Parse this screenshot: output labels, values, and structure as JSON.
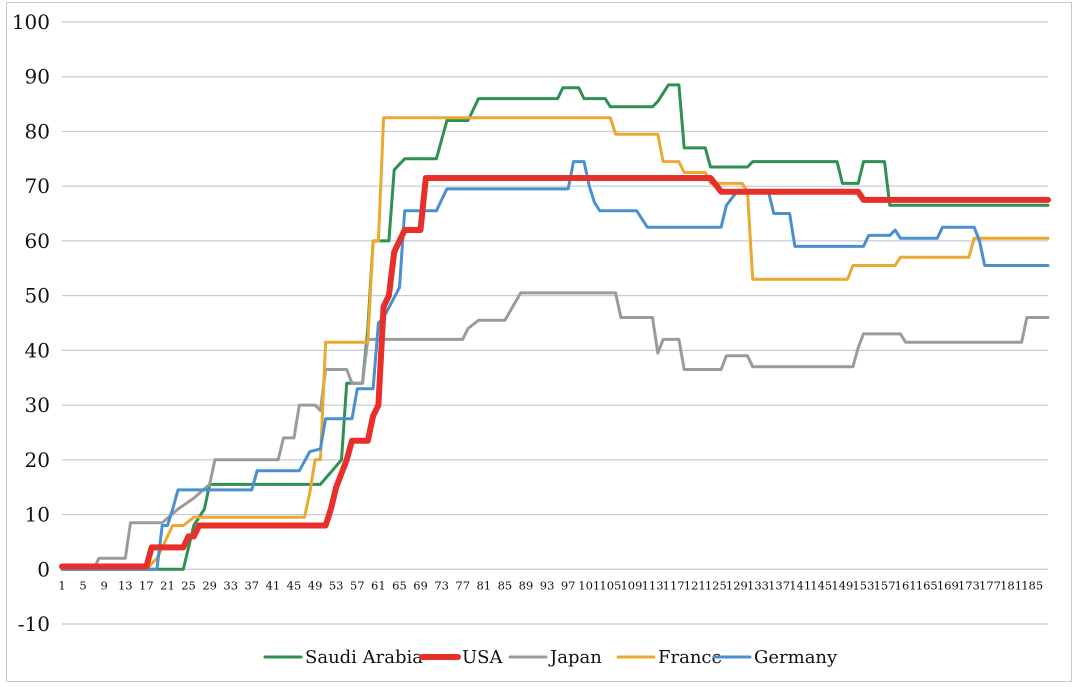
{
  "chart_data": {
    "type": "line",
    "title": "",
    "xlabel": "",
    "ylabel": "",
    "xlim": [
      1,
      188
    ],
    "ylim": [
      -10,
      100
    ],
    "yticks": [
      -10,
      0,
      10,
      20,
      30,
      40,
      50,
      60,
      70,
      80,
      90,
      100
    ],
    "xticks": [
      1,
      5,
      9,
      13,
      17,
      21,
      25,
      29,
      33,
      37,
      41,
      45,
      49,
      53,
      57,
      61,
      65,
      69,
      73,
      77,
      81,
      85,
      89,
      93,
      97,
      101,
      105,
      109,
      113,
      117,
      121,
      125,
      129,
      133,
      137,
      141,
      145,
      149,
      153,
      157,
      161,
      165,
      169,
      173,
      177,
      181,
      185
    ],
    "grid": "horizontal",
    "legend_position": "bottom",
    "series": [
      {
        "name": "Saudi Arabia",
        "color": "#2e9150",
        "width": 3,
        "points": [
          [
            1,
            0
          ],
          [
            24,
            0
          ],
          [
            26,
            8
          ],
          [
            28,
            11
          ],
          [
            29,
            15.5
          ],
          [
            45,
            15.5
          ],
          [
            50,
            15.5
          ],
          [
            54,
            20
          ],
          [
            55,
            34
          ],
          [
            58,
            34
          ],
          [
            59,
            44
          ],
          [
            60,
            60
          ],
          [
            63,
            60
          ],
          [
            64,
            73
          ],
          [
            66,
            75
          ],
          [
            72,
            75
          ],
          [
            74,
            82
          ],
          [
            78,
            82
          ],
          [
            80,
            86
          ],
          [
            95,
            86
          ],
          [
            96,
            88
          ],
          [
            99,
            88
          ],
          [
            100,
            86
          ],
          [
            104,
            86
          ],
          [
            105,
            84.5
          ],
          [
            113,
            84.5
          ],
          [
            114,
            85.5
          ],
          [
            116,
            88.5
          ],
          [
            118,
            88.5
          ],
          [
            119,
            77
          ],
          [
            123,
            77
          ],
          [
            124,
            73.5
          ],
          [
            131,
            73.5
          ],
          [
            132,
            74.5
          ],
          [
            148,
            74.5
          ],
          [
            149,
            70.5
          ],
          [
            152,
            70.5
          ],
          [
            153,
            74.5
          ],
          [
            157,
            74.5
          ],
          [
            158,
            66.5
          ],
          [
            188,
            66.5
          ]
        ]
      },
      {
        "name": "USA",
        "color": "#e8302a",
        "width": 6,
        "points": [
          [
            1,
            0.5
          ],
          [
            17,
            0.5
          ],
          [
            18,
            4
          ],
          [
            24,
            4
          ],
          [
            25,
            6
          ],
          [
            26,
            6
          ],
          [
            27,
            8
          ],
          [
            51,
            8
          ],
          [
            52,
            11
          ],
          [
            53,
            15
          ],
          [
            55,
            20
          ],
          [
            56,
            23.5
          ],
          [
            59,
            23.5
          ],
          [
            60,
            28
          ],
          [
            61,
            30
          ],
          [
            62,
            48
          ],
          [
            63,
            50
          ],
          [
            64,
            58
          ],
          [
            66,
            62
          ],
          [
            69,
            62
          ],
          [
            70,
            71.5
          ],
          [
            124,
            71.5
          ],
          [
            126,
            69
          ],
          [
            152,
            69
          ],
          [
            153,
            67.5
          ],
          [
            188,
            67.5
          ]
        ]
      },
      {
        "name": "Japan",
        "color": "#9b9b9b",
        "width": 3,
        "points": [
          [
            1,
            0
          ],
          [
            7,
            0
          ],
          [
            8,
            2
          ],
          [
            13,
            2
          ],
          [
            14,
            8.5
          ],
          [
            20,
            8.5
          ],
          [
            23,
            11
          ],
          [
            26,
            13
          ],
          [
            29,
            15.5
          ],
          [
            30,
            20
          ],
          [
            42,
            20
          ],
          [
            43,
            24
          ],
          [
            45,
            24
          ],
          [
            46,
            30
          ],
          [
            48,
            30
          ],
          [
            49,
            30
          ],
          [
            50,
            29
          ],
          [
            51,
            36.5
          ],
          [
            55,
            36.5
          ],
          [
            56,
            34
          ],
          [
            58,
            34
          ],
          [
            59,
            42
          ],
          [
            77,
            42
          ],
          [
            78,
            44
          ],
          [
            80,
            45.5
          ],
          [
            85,
            45.5
          ],
          [
            88,
            50.5
          ],
          [
            106,
            50.5
          ],
          [
            107,
            46
          ],
          [
            113,
            46
          ],
          [
            114,
            39.5
          ],
          [
            115,
            42
          ],
          [
            118,
            42
          ],
          [
            119,
            36.5
          ],
          [
            126,
            36.5
          ],
          [
            127,
            39
          ],
          [
            131,
            39
          ],
          [
            132,
            37
          ],
          [
            151,
            37
          ],
          [
            152,
            40.5
          ],
          [
            153,
            43
          ],
          [
            160,
            43
          ],
          [
            161,
            41.5
          ],
          [
            183,
            41.5
          ],
          [
            184,
            46
          ],
          [
            188,
            46
          ]
        ]
      },
      {
        "name": "France",
        "color": "#eba92f",
        "width": 3,
        "points": [
          [
            1,
            0
          ],
          [
            17,
            0
          ],
          [
            19,
            2
          ],
          [
            20,
            4
          ],
          [
            22,
            8
          ],
          [
            24,
            8
          ],
          [
            26,
            9.5
          ],
          [
            47,
            9.5
          ],
          [
            48,
            14
          ],
          [
            49,
            20
          ],
          [
            50,
            20
          ],
          [
            51,
            41.5
          ],
          [
            59,
            41.5
          ],
          [
            60,
            60
          ],
          [
            61,
            60
          ],
          [
            62,
            82.5
          ],
          [
            105,
            82.5
          ],
          [
            106,
            79.5
          ],
          [
            114,
            79.5
          ],
          [
            115,
            74.5
          ],
          [
            118,
            74.5
          ],
          [
            119,
            72.5
          ],
          [
            123,
            72.5
          ],
          [
            124,
            70.5
          ],
          [
            130,
            70.5
          ],
          [
            131,
            69
          ],
          [
            132,
            53
          ],
          [
            150,
            53
          ],
          [
            151,
            55.5
          ],
          [
            159,
            55.5
          ],
          [
            160,
            57
          ],
          [
            173,
            57
          ],
          [
            174,
            60.5
          ],
          [
            188,
            60.5
          ]
        ]
      },
      {
        "name": "Germany",
        "color": "#4a90d0",
        "width": 3,
        "points": [
          [
            1,
            0
          ],
          [
            19,
            0
          ],
          [
            20,
            8
          ],
          [
            21,
            8
          ],
          [
            22,
            11
          ],
          [
            23,
            14.5
          ],
          [
            30,
            14.5
          ],
          [
            31,
            14.5
          ],
          [
            37,
            14.5
          ],
          [
            38,
            18
          ],
          [
            46,
            18
          ],
          [
            48,
            21.5
          ],
          [
            50,
            22
          ],
          [
            51,
            27.5
          ],
          [
            56,
            27.5
          ],
          [
            57,
            33
          ],
          [
            60,
            33
          ],
          [
            61,
            45
          ],
          [
            62,
            46
          ],
          [
            65,
            51.5
          ],
          [
            66,
            65.5
          ],
          [
            72,
            65.5
          ],
          [
            74,
            69.5
          ],
          [
            96,
            69.5
          ],
          [
            97,
            69.5
          ],
          [
            98,
            74.5
          ],
          [
            100,
            74.5
          ],
          [
            101,
            70
          ],
          [
            102,
            67
          ],
          [
            103,
            65.5
          ],
          [
            110,
            65.5
          ],
          [
            112,
            62.5
          ],
          [
            126,
            62.5
          ],
          [
            127,
            66.5
          ],
          [
            129,
            69
          ],
          [
            135,
            69
          ],
          [
            136,
            65
          ],
          [
            139,
            65
          ],
          [
            140,
            59
          ],
          [
            153,
            59
          ],
          [
            154,
            61
          ],
          [
            158,
            61
          ],
          [
            159,
            62
          ],
          [
            160,
            60.5
          ],
          [
            167,
            60.5
          ],
          [
            168,
            62.5
          ],
          [
            174,
            62.5
          ],
          [
            175,
            60
          ],
          [
            176,
            55.5
          ],
          [
            188,
            55.5
          ]
        ]
      }
    ]
  }
}
